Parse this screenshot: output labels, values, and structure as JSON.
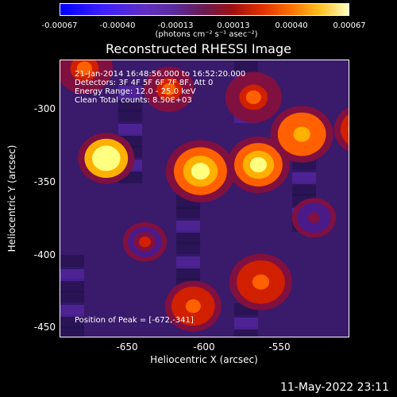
{
  "colorbar": {
    "ticks": [
      "-0.00067",
      "-0.00040",
      "-0.00013",
      "0.00013",
      "0.00040",
      "0.00067"
    ],
    "unit": "(photons cm⁻² s⁻¹ asec⁻²)"
  },
  "title": "Reconstructed RHESSI Image",
  "info": {
    "time": "21-Jan-2014 16:48:56.000 to 16:52:20.000",
    "detectors": "Detectors: 3F 4F 5F 6F 7F 8F, Att 0",
    "energy": "Energy Range: 12.0 - 25.0 keV",
    "clean": "Clean     Total counts: 8.50E+03",
    "peak": "Position of Peak = [-672,-341]"
  },
  "axes": {
    "xlabel": "Heliocentric X (arcsec)",
    "ylabel": "Heliocentric Y (arcsec)",
    "xticks": [
      "-650",
      "-600",
      "-550"
    ],
    "yticks": [
      "-300",
      "-350",
      "-400",
      "-450"
    ]
  },
  "timestamp": "11-May-2022 23:11",
  "chart_data": {
    "type": "heatmap",
    "title": "Reconstructed RHESSI Image",
    "xlabel": "Heliocentric X (arcsec)",
    "ylabel": "Heliocentric Y (arcsec)",
    "xlim": [
      -697,
      -577
    ],
    "ylim": [
      -456,
      -341
    ],
    "colorbar_range": [
      -0.00067,
      0.00067
    ],
    "peak": [
      -672,
      -341
    ],
    "blobs": [
      {
        "x": -676,
        "y": -343,
        "v": 1.0,
        "r": 9
      },
      {
        "x": -637,
        "y": -351,
        "v": 0.8,
        "r": 11
      },
      {
        "x": -613,
        "y": -347,
        "v": 0.9,
        "r": 10
      },
      {
        "x": -595,
        "y": -328,
        "v": 0.75,
        "r": 10
      },
      {
        "x": -570,
        "y": -325,
        "v": 0.7,
        "r": 9
      },
      {
        "x": -548,
        "y": -312,
        "v": 0.8,
        "r": 11
      },
      {
        "x": -535,
        "y": -337,
        "v": 0.65,
        "r": 8
      },
      {
        "x": -560,
        "y": -372,
        "v": 0.7,
        "r": 8
      },
      {
        "x": -540,
        "y": -388,
        "v": 0.7,
        "r": 10
      },
      {
        "x": -565,
        "y": -405,
        "v": 0.85,
        "r": 8
      },
      {
        "x": -612,
        "y": -420,
        "v": 0.6,
        "r": 10
      },
      {
        "x": -640,
        "y": -435,
        "v": 0.6,
        "r": 9
      },
      {
        "x": -685,
        "y": -287,
        "v": 0.55,
        "r": 9
      },
      {
        "x": -650,
        "y": -300,
        "v": 0.5,
        "r": 8
      },
      {
        "x": -615,
        "y": -305,
        "v": 0.55,
        "r": 9
      },
      {
        "x": -660,
        "y": -395,
        "v": 0.35,
        "r": 7
      },
      {
        "x": -590,
        "y": -380,
        "v": 0.3,
        "r": 7
      }
    ]
  }
}
